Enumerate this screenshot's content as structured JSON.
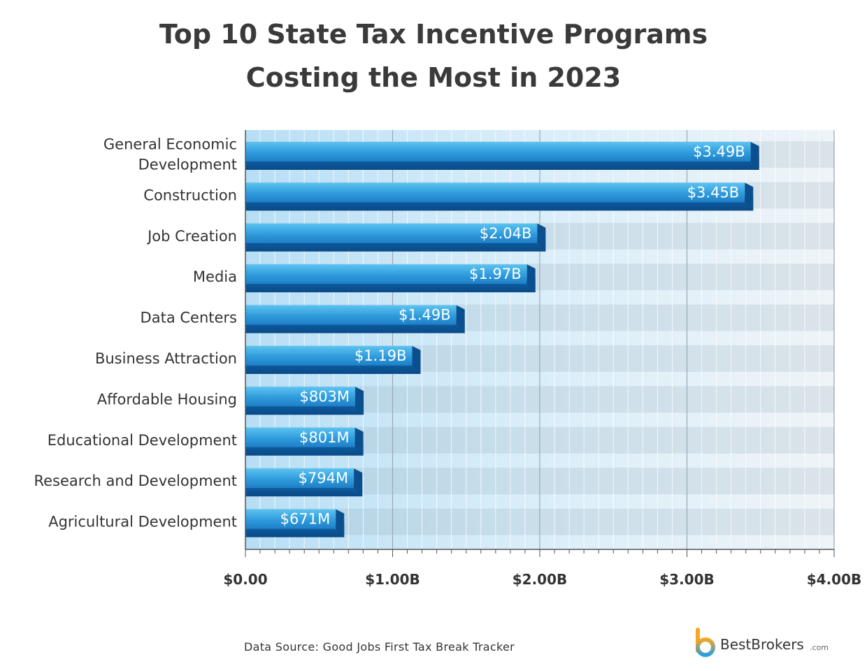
{
  "chart_data": {
    "type": "bar",
    "orientation": "horizontal",
    "title_line1": "Top 10 State Tax Incentive Programs",
    "title_line2": "Costing the Most in 2023",
    "categories": [
      [
        "General Economic",
        "Development"
      ],
      [
        "Construction"
      ],
      [
        "Job Creation"
      ],
      [
        "Media"
      ],
      [
        "Data Centers"
      ],
      [
        "Business Attraction"
      ],
      [
        "Affordable Housing"
      ],
      [
        "Educational Development"
      ],
      [
        "Research and Development"
      ],
      [
        "Agricultural Development"
      ]
    ],
    "values": [
      3.49,
      3.45,
      2.04,
      1.97,
      1.49,
      1.19,
      0.803,
      0.801,
      0.794,
      0.671
    ],
    "value_labels": [
      "$3.49B",
      "$3.45B",
      "$2.04B",
      "$1.97B",
      "$1.49B",
      "$1.19B",
      "$803M",
      "$801M",
      "$794M",
      "$671M"
    ],
    "x_ticks": [
      0,
      1,
      2,
      3,
      4
    ],
    "x_tick_labels": [
      "$0.00",
      "$1.00B",
      "$2.00B",
      "$3.00B",
      "$4.00B"
    ],
    "xlim": [
      0,
      4
    ],
    "xlabel": "",
    "ylabel": "",
    "colors": {
      "bar_top": "#3ab0e8",
      "bar_bottom": "#0d5fa8",
      "bar_dark": "#0a4f8e",
      "text": "#333333",
      "grid": "#9aa8b3"
    }
  },
  "footer": {
    "source": "Data Source: Good Jobs First Tax Break Tracker",
    "brand_name": "BestBrokers",
    "brand_domain": ".com"
  }
}
